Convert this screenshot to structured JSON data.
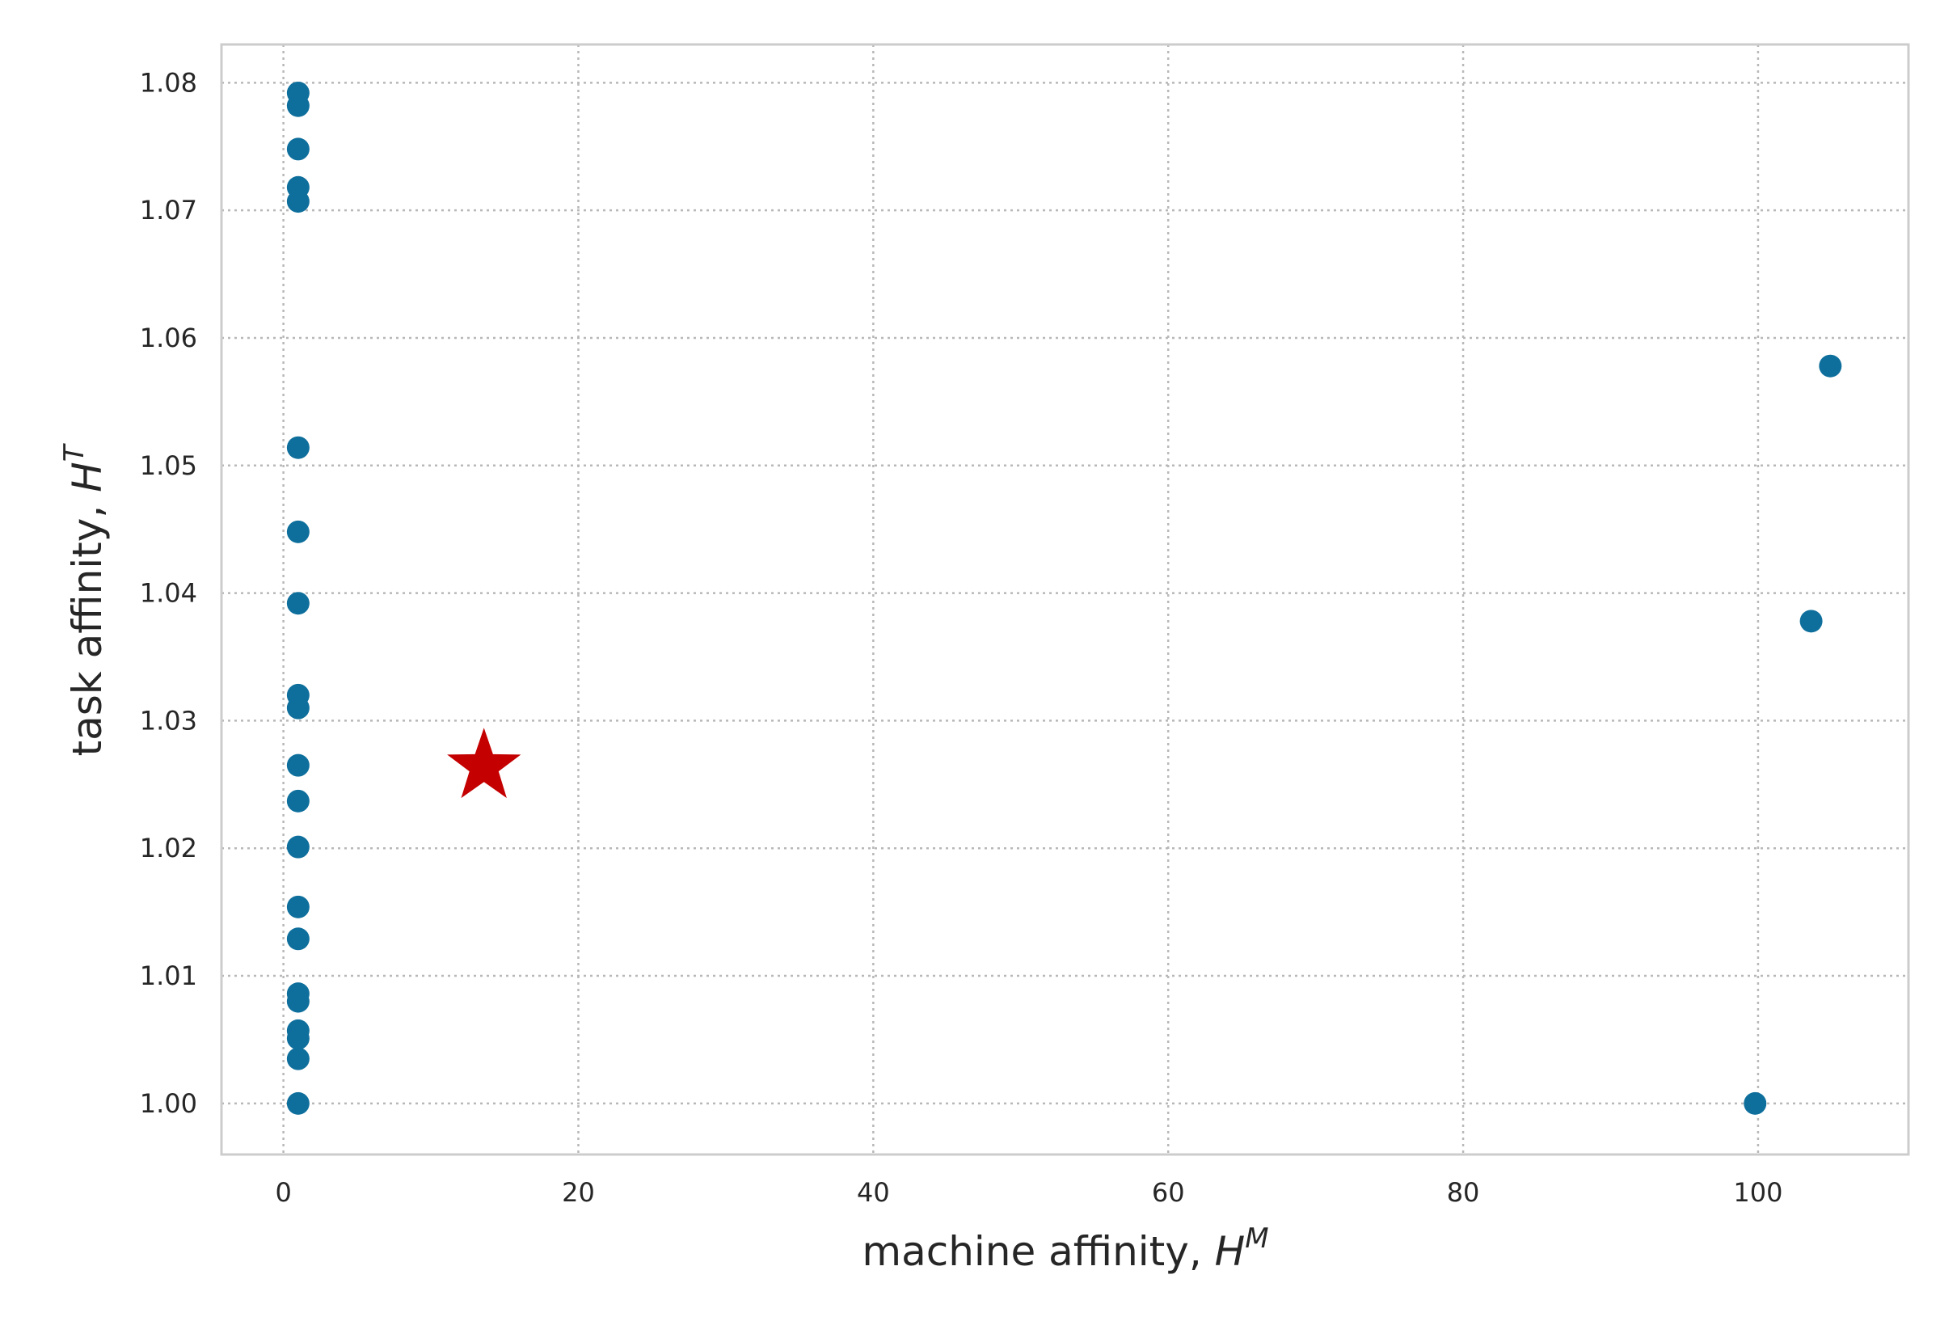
{
  "chart_data": {
    "type": "scatter",
    "title": "",
    "xlabel": "machine affinity, ",
    "xlabel_math": "H",
    "xlabel_sup": "M",
    "ylabel": "task affinity, ",
    "ylabel_math": "H",
    "ylabel_sup": "T",
    "xlim": [
      -4.2,
      110.2
    ],
    "ylim": [
      0.996,
      1.083
    ],
    "xticks": [
      0,
      20,
      40,
      60,
      80,
      100
    ],
    "xtick_labels": [
      "0",
      "20",
      "40",
      "60",
      "80",
      "100"
    ],
    "yticks": [
      1.0,
      1.01,
      1.02,
      1.03,
      1.04,
      1.05,
      1.06,
      1.07,
      1.08
    ],
    "ytick_labels": [
      "1.00",
      "1.01",
      "1.02",
      "1.03",
      "1.04",
      "1.05",
      "1.06",
      "1.07",
      "1.08"
    ],
    "grid": true,
    "grid_style": "dotted",
    "series": [
      {
        "marker": "circle",
        "color": "#0e6f9c",
        "points": [
          {
            "x": 1.0,
            "y": 1.0792
          },
          {
            "x": 1.0,
            "y": 1.0782
          },
          {
            "x": 1.0,
            "y": 1.0748
          },
          {
            "x": 1.0,
            "y": 1.0718
          },
          {
            "x": 1.0,
            "y": 1.0707
          },
          {
            "x": 1.0,
            "y": 1.0514
          },
          {
            "x": 1.0,
            "y": 1.0448
          },
          {
            "x": 1.0,
            "y": 1.0392
          },
          {
            "x": 1.0,
            "y": 1.032
          },
          {
            "x": 1.0,
            "y": 1.031
          },
          {
            "x": 1.0,
            "y": 1.0265
          },
          {
            "x": 1.0,
            "y": 1.0237
          },
          {
            "x": 1.0,
            "y": 1.0201
          },
          {
            "x": 1.0,
            "y": 1.0154
          },
          {
            "x": 1.0,
            "y": 1.0129
          },
          {
            "x": 1.0,
            "y": 1.0086
          },
          {
            "x": 1.0,
            "y": 1.008
          },
          {
            "x": 1.0,
            "y": 1.0057
          },
          {
            "x": 1.0,
            "y": 1.0051
          },
          {
            "x": 1.0,
            "y": 1.0035
          },
          {
            "x": 1.0,
            "y": 1.0
          },
          {
            "x": 99.8,
            "y": 1.0
          },
          {
            "x": 103.6,
            "y": 1.0378
          },
          {
            "x": 104.9,
            "y": 1.0578
          }
        ]
      },
      {
        "marker": "star",
        "color": "#c40000",
        "points": [
          {
            "x": 13.6,
            "y": 1.0264
          }
        ]
      }
    ],
    "colors": {
      "frame": "#cccccc",
      "grid": "#b8b8b8",
      "text": "#262626",
      "background": "#ffffff"
    }
  }
}
